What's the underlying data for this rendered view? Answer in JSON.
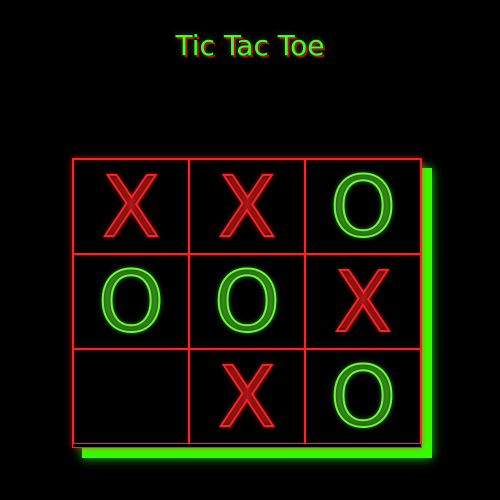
{
  "title": "Tic Tac Toe",
  "colors": {
    "title": "#44ff22",
    "grid_lines": "#ff2222",
    "x_mark": "#ff2222",
    "o_mark": "#66ff33",
    "board_shadow": "#33ff00",
    "background": "#000000"
  },
  "board": {
    "cells": [
      "X",
      "X",
      "O",
      "O",
      "O",
      "X",
      "",
      "X",
      "O"
    ]
  }
}
